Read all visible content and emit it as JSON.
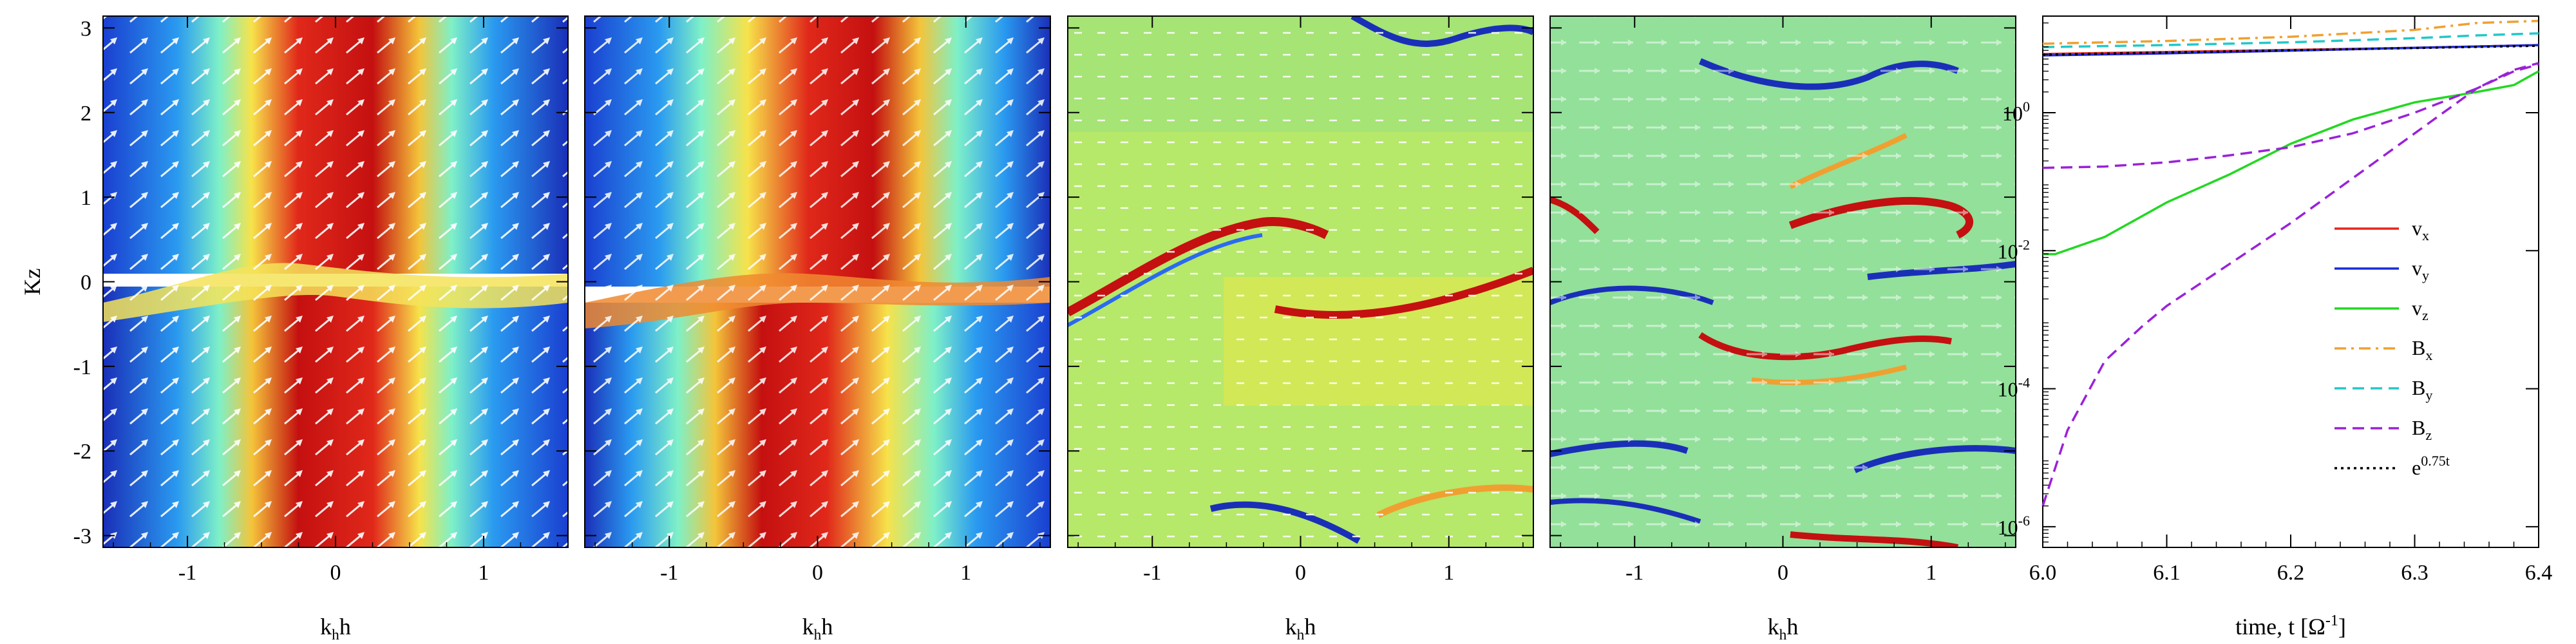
{
  "chart_data": [
    {
      "type": "heatmap",
      "panel": 1,
      "xlabel": "k",
      "xlabel_sub": "h",
      "xlabel_suffix": "h",
      "ylabel": "Kz",
      "xlim": [
        -1.57,
        1.57
      ],
      "ylim": [
        -3.14,
        3.14
      ],
      "xticks": [
        "-1",
        "0",
        "1"
      ],
      "yticks": [
        "-3",
        "-2",
        "-1",
        "0",
        "1",
        "2",
        "3"
      ],
      "overlay": "velocity vectors"
    },
    {
      "type": "heatmap",
      "panel": 2,
      "xlabel": "k",
      "xlabel_sub": "h",
      "xlabel_suffix": "h",
      "xlim": [
        -1.57,
        1.57
      ],
      "ylim": [
        -3.14,
        3.14
      ],
      "xticks": [
        "-1",
        "0",
        "1"
      ],
      "overlay": "velocity vectors"
    },
    {
      "type": "heatmap",
      "panel": 3,
      "xlabel": "k",
      "xlabel_sub": "h",
      "xlabel_suffix": "h",
      "xlim": [
        -1.57,
        1.57
      ],
      "ylim": [
        -3.14,
        3.14
      ],
      "xticks": [
        "-1",
        "0",
        "1"
      ],
      "overlay": "velocity vectors"
    },
    {
      "type": "heatmap",
      "panel": 4,
      "xlabel": "k",
      "xlabel_sub": "h",
      "xlabel_suffix": "h",
      "xlim": [
        -1.57,
        1.57
      ],
      "ylim": [
        -3.14,
        3.14
      ],
      "xticks": [
        "-1",
        "0",
        "1"
      ],
      "overlay": "velocity vectors"
    },
    {
      "type": "line",
      "panel": 5,
      "xlabel": "time, t  [Ω",
      "xlabel_sup": "-1",
      "xlabel_end": "]",
      "xlim": [
        6.0,
        6.4
      ],
      "ylim_log10": [
        -6.3,
        1.4
      ],
      "yscale": "log",
      "xticks": [
        "6.0",
        "6.1",
        "6.2",
        "6.3",
        "6.4"
      ],
      "yticks": [
        {
          "base": "10",
          "exp": "0",
          "log": 0
        },
        {
          "base": "10",
          "exp": "-2",
          "log": -2
        },
        {
          "base": "10",
          "exp": "-4",
          "log": -4
        },
        {
          "base": "10",
          "exp": "-6",
          "log": -6
        }
      ],
      "legend_position": "right",
      "series": [
        {
          "name": "v",
          "sub": "x",
          "color": "#e8251c",
          "dash": "solid",
          "x": [
            6.0,
            6.1,
            6.2,
            6.3,
            6.4
          ],
          "logy": [
            0.85,
            0.88,
            0.91,
            0.94,
            0.98
          ]
        },
        {
          "name": "v",
          "sub": "y",
          "color": "#1c2bd8",
          "dash": "solid",
          "x": [
            6.0,
            6.1,
            6.2,
            6.3,
            6.4
          ],
          "logy": [
            0.83,
            0.86,
            0.9,
            0.94,
            0.98
          ]
        },
        {
          "name": "v",
          "sub": "z",
          "color": "#22d822",
          "dash": "solid",
          "x": [
            6.0,
            6.01,
            6.05,
            6.1,
            6.15,
            6.2,
            6.25,
            6.3,
            6.35,
            6.38,
            6.4
          ],
          "logy": [
            -2.05,
            -2.05,
            -1.8,
            -1.3,
            -0.9,
            -0.45,
            -0.1,
            0.15,
            0.3,
            0.4,
            0.6
          ]
        },
        {
          "name": "B",
          "sub": "x",
          "color": "#f0a030",
          "dash": "dashdot",
          "x": [
            6.0,
            6.1,
            6.2,
            6.3,
            6.35,
            6.4
          ],
          "logy": [
            1.0,
            1.04,
            1.1,
            1.2,
            1.3,
            1.33
          ]
        },
        {
          "name": "B",
          "sub": "y",
          "color": "#22c8c8",
          "dash": "dashed",
          "x": [
            6.0,
            6.1,
            6.2,
            6.3,
            6.35,
            6.4
          ],
          "logy": [
            0.95,
            0.98,
            1.02,
            1.08,
            1.12,
            1.15
          ]
        },
        {
          "name": "B",
          "sub": "z",
          "color": "#9a22d8",
          "dash": "dashed",
          "x": [
            6.0,
            6.02,
            6.05,
            6.08,
            6.1,
            6.15,
            6.2,
            6.25,
            6.3,
            6.35,
            6.38,
            6.4
          ],
          "logy": [
            -5.7,
            -4.6,
            -3.6,
            -3.1,
            -2.8,
            -2.2,
            -1.6,
            -0.95,
            -0.3,
            0.35,
            0.6,
            0.7
          ]
        },
        {
          "name": "B",
          "sub": "z",
          "color": "#9a22d8",
          "dash": "dashed",
          "x": [
            6.0,
            6.05,
            6.1,
            6.15,
            6.2,
            6.25,
            6.3,
            6.35,
            6.38,
            6.4
          ],
          "logy": [
            -0.8,
            -0.78,
            -0.72,
            -0.62,
            -0.5,
            -0.3,
            0.0,
            0.35,
            0.62,
            0.72
          ],
          "legend": false
        },
        {
          "name": "e",
          "sup": "0.75t",
          "color": "#000000",
          "dash": "dotted",
          "x": [
            6.0,
            6.4
          ],
          "logy": [
            0.84,
            0.97
          ]
        }
      ]
    }
  ]
}
